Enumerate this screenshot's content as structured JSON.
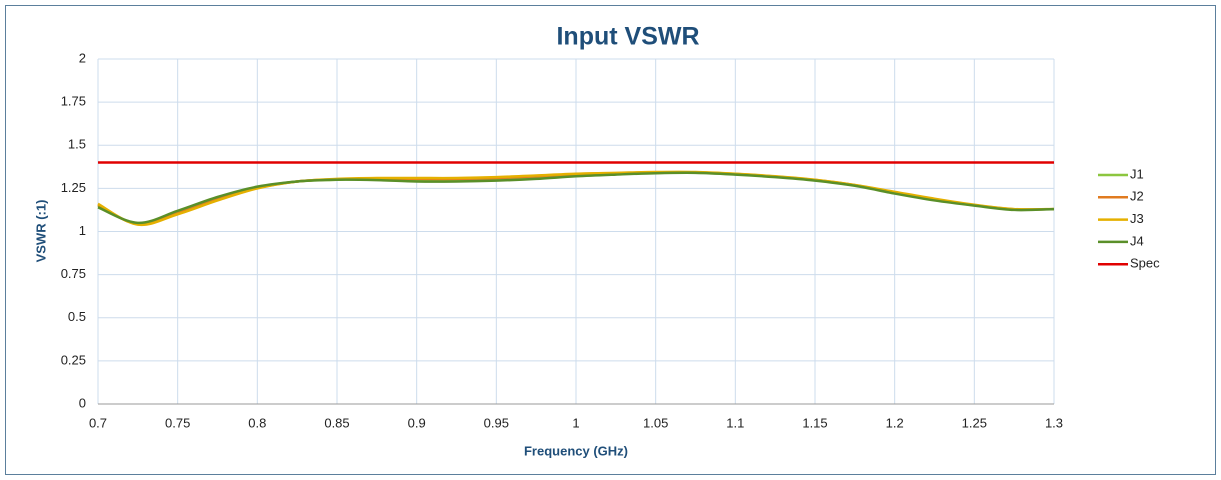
{
  "chart_data": {
    "type": "line",
    "title": "Input VSWR",
    "x_label": "Frequency (GHz)",
    "y_label": "VSWR (:1)",
    "x": [
      0.7,
      0.725,
      0.75,
      0.775,
      0.8,
      0.825,
      0.85,
      0.875,
      0.9,
      0.925,
      0.95,
      0.975,
      1.0,
      1.025,
      1.05,
      1.075,
      1.1,
      1.125,
      1.15,
      1.175,
      1.2,
      1.225,
      1.25,
      1.275,
      1.3
    ],
    "series": [
      {
        "name": "J1",
        "color": "#8cc63f",
        "values": [
          1.15,
          1.045,
          1.11,
          1.19,
          1.255,
          1.29,
          1.3,
          1.305,
          1.3,
          1.3,
          1.305,
          1.315,
          1.33,
          1.335,
          1.34,
          1.342,
          1.333,
          1.318,
          1.298,
          1.268,
          1.225,
          1.185,
          1.152,
          1.128,
          1.13
        ]
      },
      {
        "name": "J2",
        "color": "#e07b20",
        "values": [
          1.155,
          1.042,
          1.105,
          1.185,
          1.252,
          1.29,
          1.302,
          1.307,
          1.305,
          1.305,
          1.31,
          1.32,
          1.333,
          1.338,
          1.343,
          1.343,
          1.334,
          1.319,
          1.299,
          1.269,
          1.227,
          1.187,
          1.153,
          1.129,
          1.13
        ]
      },
      {
        "name": "J3",
        "color": "#e5b000",
        "values": [
          1.16,
          1.04,
          1.1,
          1.18,
          1.25,
          1.29,
          1.305,
          1.31,
          1.31,
          1.31,
          1.315,
          1.325,
          1.335,
          1.34,
          1.345,
          1.345,
          1.335,
          1.32,
          1.3,
          1.27,
          1.23,
          1.19,
          1.155,
          1.13,
          1.13
        ]
      },
      {
        "name": "J4",
        "color": "#5a8f29",
        "values": [
          1.14,
          1.05,
          1.12,
          1.2,
          1.26,
          1.29,
          1.3,
          1.298,
          1.29,
          1.29,
          1.295,
          1.305,
          1.32,
          1.33,
          1.338,
          1.34,
          1.33,
          1.315,
          1.295,
          1.265,
          1.22,
          1.18,
          1.15,
          1.125,
          1.13
        ]
      },
      {
        "name": "Spec",
        "color": "#e00000",
        "values": [
          1.4,
          1.4,
          1.4,
          1.4,
          1.4,
          1.4,
          1.4,
          1.4,
          1.4,
          1.4,
          1.4,
          1.4,
          1.4,
          1.4,
          1.4,
          1.4,
          1.4,
          1.4,
          1.4,
          1.4,
          1.4,
          1.4,
          1.4,
          1.4,
          1.4
        ]
      }
    ],
    "xlim": [
      0.7,
      1.3
    ],
    "xticks": [
      0.7,
      0.75,
      0.8,
      0.85,
      0.9,
      0.95,
      1,
      1.05,
      1.1,
      1.15,
      1.2,
      1.25,
      1.3
    ],
    "ylim": [
      0,
      2
    ],
    "yticks": [
      0,
      0.25,
      0.5,
      0.75,
      1,
      1.25,
      1.5,
      1.75,
      2
    ],
    "grid": true,
    "legend": "right"
  }
}
